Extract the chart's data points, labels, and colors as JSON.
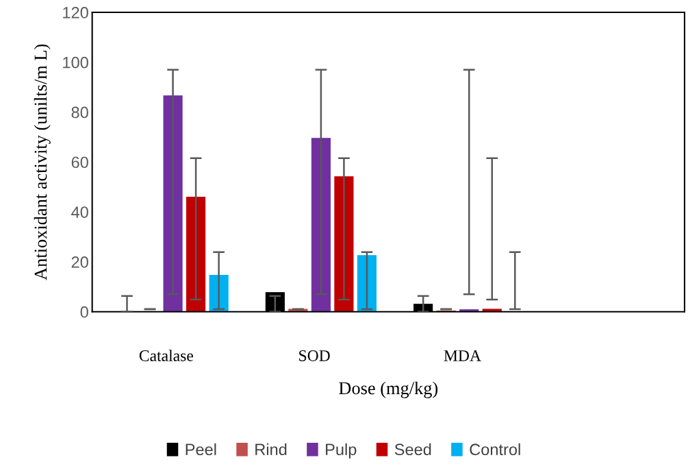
{
  "chart_data": {
    "type": "bar",
    "xlabel": "Dose (mg/kg)",
    "ylabel": "Antioxidant activity (unilts/m L)",
    "categories": [
      "Catalase",
      "SOD",
      "MDA",
      null
    ],
    "ylim": [
      0,
      120
    ],
    "yticks": [
      0,
      20,
      40,
      60,
      80,
      100,
      120
    ],
    "grid": false,
    "legend": "bottom",
    "series": [
      {
        "name": "Peel",
        "color": "#000000",
        "values": [
          0,
          7.7,
          3,
          null
        ],
        "errors": [
          [
            0,
            6.3
          ],
          [
            0,
            6.3
          ],
          [
            0,
            6.3
          ],
          null
        ]
      },
      {
        "name": "Rind",
        "color": "#c0504d",
        "values": [
          0,
          1,
          0.3,
          null
        ],
        "errors": [
          [
            1,
            1
          ],
          [
            1,
            1
          ],
          [
            1,
            1
          ],
          null
        ]
      },
      {
        "name": "Pulp",
        "color": "#7030a0",
        "values": [
          86.5,
          69.5,
          0.8,
          null
        ],
        "errors": [
          [
            7,
            97
          ],
          [
            7,
            97
          ],
          [
            7,
            97
          ],
          null
        ]
      },
      {
        "name": "Seed",
        "color": "#c00000",
        "values": [
          45.9,
          54.1,
          1,
          null
        ],
        "errors": [
          [
            4.9,
            61.5
          ],
          [
            4.9,
            61.5
          ],
          [
            4.9,
            61.5
          ],
          null
        ]
      },
      {
        "name": "Control",
        "color": "#00b0f0",
        "values": [
          14.6,
          22.5,
          0,
          null
        ],
        "errors": [
          [
            1,
            23.9
          ],
          [
            1,
            23.9
          ],
          [
            1,
            23.9
          ],
          null
        ]
      }
    ]
  }
}
